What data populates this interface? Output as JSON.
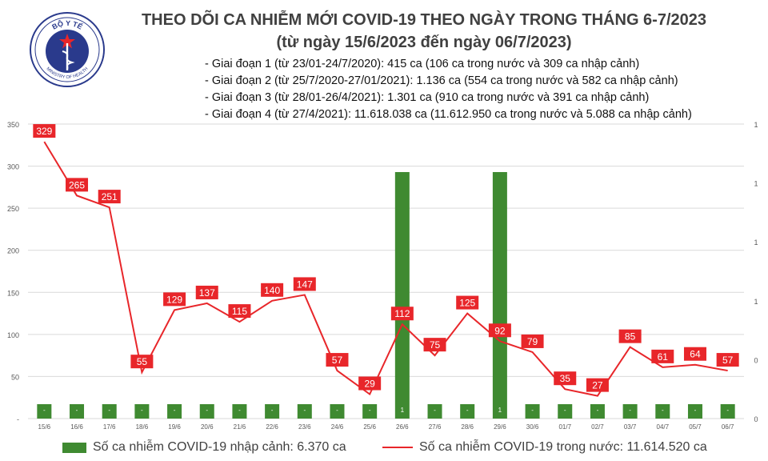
{
  "logo": {
    "text": "BỘ Y TẾ",
    "subtext": "MINISTRY OF HEALTH"
  },
  "chart_data": {
    "type": "bar+line",
    "title": "THEO DÕI CA NHIỄM MỚI COVID-19 THEO NGÀY TRONG THÁNG 6-7/2023",
    "subtitle": "(từ ngày 15/6/2023 đến ngày 06/7/2023)",
    "notes": [
      "- Giai đoạn 1 (từ 23/01-24/7/2020): 415 ca (106 ca trong nước và 309 ca nhập cảnh)",
      "- Giai đoạn 2 (từ 25/7/2020-27/01/2021): 1.136 ca (554 ca trong nước và 582 ca nhập cảnh)",
      "- Giai đoạn 3 (từ 28/01-26/4/2021): 1.301 ca (910 ca trong nước và 391 ca nhập cảnh)",
      "- Giai đoạn 4 (từ 27/4/2021): 11.618.038 ca (11.612.950 ca trong nước và 5.088 ca nhập cảnh)"
    ],
    "categories": [
      "15/6",
      "16/6",
      "17/6",
      "18/6",
      "19/6",
      "20/6",
      "21/6",
      "22/6",
      "23/6",
      "24/6",
      "25/6",
      "26/6",
      "27/6",
      "28/6",
      "29/6",
      "30/6",
      "01/7",
      "02/7",
      "03/7",
      "04/7",
      "05/7",
      "06/7"
    ],
    "series": [
      {
        "name": "Số ca nhiễm COVID-19 nhập cảnh: 6.370 ca",
        "type": "bar",
        "axis": "right",
        "color": "#3f8a31",
        "values": [
          0,
          0,
          0,
          0,
          0,
          0,
          0,
          0,
          0,
          0,
          0,
          1,
          0,
          0,
          1,
          0,
          0,
          0,
          0,
          0,
          0,
          0
        ],
        "labels": [
          "-",
          "-",
          "-",
          "-",
          "-",
          "-",
          "-",
          "-",
          "-",
          "-",
          "-",
          "1",
          "-",
          "-",
          "1",
          "-",
          "-",
          "-",
          "-",
          "-",
          "-",
          "-"
        ]
      },
      {
        "name": "Số ca nhiễm COVID-19 trong nước: 11.614.520 ca",
        "type": "line",
        "axis": "left",
        "color": "#e8262a",
        "values": [
          329,
          265,
          251,
          55,
          129,
          137,
          115,
          140,
          147,
          57,
          29,
          112,
          75,
          125,
          92,
          79,
          35,
          27,
          85,
          61,
          64,
          57
        ]
      }
    ],
    "y_left": {
      "ticks": [
        "-",
        "50",
        "100",
        "150",
        "200",
        "250",
        "300",
        "350"
      ],
      "ylim": [
        0,
        350
      ]
    },
    "y_right": {
      "ticks": [
        "0",
        "0",
        "1",
        "1",
        "1",
        "1"
      ],
      "ylim": [
        0,
        1
      ]
    },
    "grid": true,
    "legend": "bottom"
  }
}
